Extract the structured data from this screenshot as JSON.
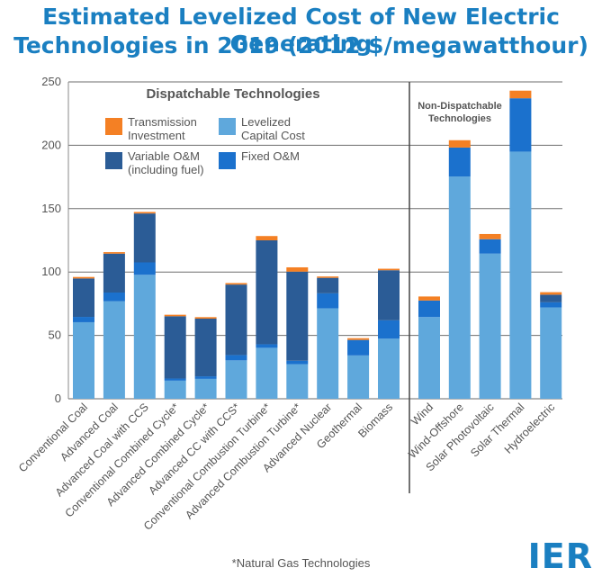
{
  "title_line1": "Estimated Levelized Cost of New Electric Generating",
  "title_line2": "Technologies in 2019 (2012 $/megawatthour)",
  "footnote": "*Natural Gas Technologies",
  "logo": "IER",
  "colors": {
    "transmission": "#f48024",
    "variable": "#2b5c96",
    "fixed": "#1b71cd",
    "capital": "#5fa8dc",
    "title": "#1a7fc1"
  },
  "chart_data": {
    "type": "bar",
    "stacked": true,
    "title": "Estimated Levelized Cost of New Electric Generating Technologies in 2019 (2012 $/megawatthour)",
    "ylim": [
      0,
      250
    ],
    "yticks": [
      0,
      50,
      100,
      150,
      200,
      250
    ],
    "grid": true,
    "legend": {
      "placement": "top-left",
      "entries": [
        {
          "key": "transmission",
          "label_lines": [
            "Transmission",
            "Investment"
          ]
        },
        {
          "key": "capital",
          "label_lines": [
            "Levelized",
            "Capital Cost"
          ]
        },
        {
          "key": "variable",
          "label_lines": [
            "Variable O&M",
            "(including fuel)"
          ]
        },
        {
          "key": "fixed",
          "label_lines": [
            "Fixed O&M"
          ]
        }
      ]
    },
    "groups": [
      {
        "label": "Dispatchable Technologies",
        "count": 11
      },
      {
        "label_lines": [
          "Non-Dispatchable",
          "Technologies"
        ],
        "count": 5
      }
    ],
    "categories": [
      "Conventional Coal",
      "Advanced Coal",
      "Advanced Coal with CCS",
      "Conventional Combined Cycle*",
      "Advanced Combined Cycle*",
      "Advanced CC with CCS*",
      "Conventional Combustion Turbine*",
      "Advanced Combustion Turbine*",
      "Advanced Nuclear",
      "Geothermal",
      "Biomass",
      "Wind",
      "Wind-Offshore",
      "Solar Photovoltaic",
      "Solar Thermal",
      "Hydroelectric"
    ],
    "series": [
      {
        "name": "Levelized Capital Cost",
        "key": "capital",
        "values": [
          60.4,
          76.9,
          97.8,
          14.3,
          15.7,
          30.3,
          40.2,
          27.3,
          71.4,
          34.2,
          47.4,
          64.5,
          175.4,
          114.5,
          195.0,
          72.0
        ]
      },
      {
        "name": "Fixed O&M",
        "key": "fixed",
        "values": [
          4.2,
          6.9,
          9.8,
          1.7,
          2.0,
          4.2,
          2.8,
          2.7,
          11.8,
          12.2,
          14.5,
          13.0,
          22.8,
          11.4,
          42.1,
          4.1
        ]
      },
      {
        "name": "Variable O&M (including fuel)",
        "key": "variable",
        "values": [
          30.3,
          30.7,
          38.6,
          49.1,
          45.5,
          55.6,
          82.0,
          70.3,
          12.2,
          0.0,
          39.5,
          0.0,
          0.0,
          0.0,
          0.0,
          6.0
        ]
      },
      {
        "name": "Transmission Investment",
        "key": "transmission",
        "values": [
          1.2,
          1.2,
          1.2,
          1.2,
          1.2,
          1.2,
          3.4,
          3.4,
          1.1,
          1.4,
          1.2,
          3.2,
          5.8,
          4.1,
          6.0,
          2.0
        ]
      }
    ]
  }
}
